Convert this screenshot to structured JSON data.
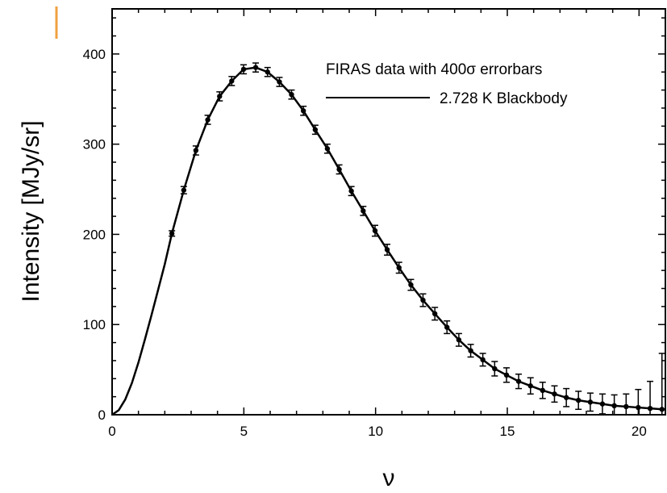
{
  "accent_mark_color": "#f0a040",
  "chart_data": {
    "type": "scatter",
    "title": "",
    "xlabel": "ν",
    "ylabel": "Intensity [MJy/sr]",
    "xlim": [
      0,
      21
    ],
    "ylim": [
      0,
      450
    ],
    "xticks": [
      0,
      5,
      10,
      15,
      20
    ],
    "yticks": [
      0,
      100,
      200,
      300,
      400
    ],
    "grid": false,
    "legend": {
      "position": "top-right",
      "entries": [
        "FIRAS data with 400σ errorbars",
        "2.728 K Blackbody"
      ]
    },
    "series": [
      {
        "name": "FIRAS data with 400σ errorbars",
        "kind": "points-with-errorbars",
        "x": [
          2.27,
          2.72,
          3.18,
          3.63,
          4.08,
          4.54,
          4.99,
          5.45,
          5.9,
          6.35,
          6.81,
          7.26,
          7.71,
          8.17,
          8.62,
          9.08,
          9.53,
          9.98,
          10.44,
          10.89,
          11.34,
          11.8,
          12.25,
          12.71,
          13.16,
          13.61,
          14.07,
          14.52,
          14.97,
          15.43,
          15.88,
          16.34,
          16.79,
          17.24,
          17.7,
          18.15,
          18.61,
          19.06,
          19.51,
          19.97,
          20.42,
          20.87
        ],
        "y": [
          201,
          249,
          293,
          327,
          353,
          370,
          383,
          385,
          380,
          369,
          355,
          337,
          316,
          295,
          272,
          248,
          226,
          204,
          183,
          163,
          144,
          127,
          112,
          97,
          83,
          71,
          61,
          51,
          44,
          37,
          32,
          27,
          23,
          19,
          16,
          14,
          12,
          10,
          9,
          8,
          7,
          6
        ],
        "error": [
          3,
          4,
          5,
          5,
          5,
          5,
          5,
          5,
          5,
          5,
          5,
          5,
          5,
          5,
          5,
          5,
          5,
          6,
          6,
          6,
          6,
          7,
          7,
          7,
          7,
          7,
          7,
          8,
          8,
          8,
          9,
          9,
          9,
          10,
          10,
          10,
          11,
          12,
          14,
          20,
          30,
          62
        ]
      },
      {
        "name": "2.728 K Blackbody",
        "kind": "line",
        "x": [
          0,
          0.25,
          0.5,
          0.75,
          1.0,
          1.25,
          1.5,
          1.75,
          2.0,
          2.27,
          2.72,
          3.18,
          3.63,
          4.08,
          4.54,
          4.99,
          5.45,
          5.9,
          6.35,
          6.81,
          7.26,
          7.71,
          8.17,
          8.62,
          9.08,
          9.53,
          9.98,
          10.44,
          10.89,
          11.34,
          11.8,
          12.25,
          12.71,
          13.16,
          13.61,
          14.07,
          14.52,
          14.97,
          15.43,
          15.88,
          16.34,
          16.79,
          17.24,
          17.7,
          18.15,
          18.61,
          19.06,
          19.51,
          19.97,
          20.42,
          20.87,
          21.0
        ],
        "y": [
          0,
          5,
          17,
          35,
          58,
          84,
          111,
          139,
          167,
          201,
          249,
          293,
          327,
          353,
          370,
          383,
          385,
          380,
          369,
          355,
          337,
          316,
          295,
          272,
          248,
          226,
          204,
          183,
          163,
          144,
          127,
          112,
          97,
          83,
          71,
          61,
          51,
          44,
          37,
          32,
          27,
          23,
          19,
          16,
          14,
          12,
          10,
          9,
          8,
          7,
          6,
          6
        ]
      }
    ]
  }
}
